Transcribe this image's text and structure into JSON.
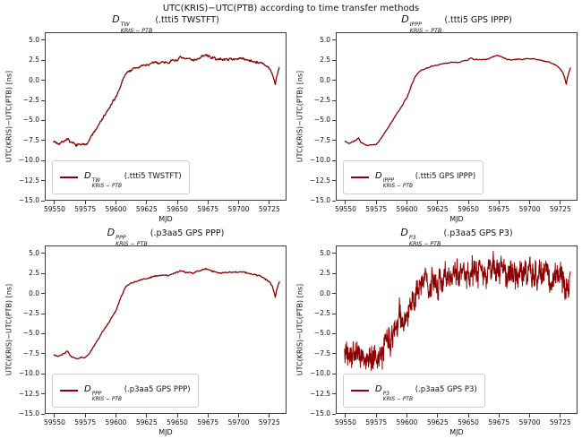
{
  "line_color": "#8B0000",
  "chart_data": {
    "type": "line",
    "title": "UTC(KRIS)−UTC(PTB) according to time transfer methods",
    "xlabel": "MJD",
    "ylabel": "UTC(KRIS)−UTC(PTB) [ns]",
    "symbol": "D",
    "xlim": [
      59542,
      59739
    ],
    "ylim": [
      -15,
      6
    ],
    "xticks": [
      59550,
      59575,
      59600,
      59625,
      59650,
      59675,
      59700,
      59725
    ],
    "yticks": [
      5.0,
      2.5,
      0.0,
      -2.5,
      -5.0,
      -7.5,
      -10.0,
      -12.5,
      -15.0
    ],
    "grid": false,
    "legend_position": "lower left",
    "data_mjd_range": [
      59548.5,
      59734
    ],
    "x_anchors": [
      59548.5,
      59552,
      59555,
      59558,
      59560,
      59562,
      59565,
      59568,
      59571,
      59574,
      59577,
      59580,
      59583,
      59586,
      59589,
      59592,
      59595,
      59598,
      59600,
      59602,
      59604,
      59606,
      59608,
      59611,
      59615,
      59620,
      59625,
      59630,
      59635,
      59639,
      59642,
      59646,
      59650,
      59652,
      59655,
      59658,
      59661,
      59664,
      59667,
      59670,
      59673,
      59676,
      59679,
      59682,
      59685,
      59688,
      59691,
      59694,
      59697,
      59700,
      59703,
      59706,
      59709,
      59712,
      59715,
      59718,
      59721,
      59724,
      59726,
      59728,
      59729.5,
      59730.5,
      59731.5,
      59733,
      59734
    ],
    "trend_ns": [
      -7.6,
      -7.9,
      -7.7,
      -7.5,
      -7.2,
      -7.8,
      -8.0,
      -8.15,
      -8.0,
      -8.1,
      -7.6,
      -6.9,
      -6.2,
      -5.5,
      -4.7,
      -4.0,
      -3.3,
      -2.5,
      -2.0,
      -1.2,
      -0.4,
      0.4,
      0.9,
      1.3,
      1.55,
      1.8,
      2.0,
      2.2,
      2.3,
      2.4,
      2.35,
      2.5,
      2.65,
      2.9,
      2.75,
      2.7,
      2.75,
      2.7,
      2.8,
      3.0,
      3.2,
      3.1,
      2.9,
      2.75,
      2.65,
      2.7,
      2.75,
      2.7,
      2.8,
      2.75,
      2.8,
      2.7,
      2.65,
      2.5,
      2.4,
      2.25,
      2.05,
      1.7,
      1.4,
      0.9,
      0.2,
      -0.4,
      0.4,
      1.2,
      1.7
    ],
    "series": [
      {
        "id": "twstft",
        "name": "D^TW_KRIS−PTB (.ttti5 TWSTFT)",
        "sup": "TW",
        "sub": "KRIS − PTB",
        "note": "(.ttti5 TWSTFT)",
        "noise_ns": 0.13,
        "seed": 7,
        "step_mjd": 0.4
      },
      {
        "id": "ippp",
        "name": "D^IPPP_KRIS−PTB (.ttti5 GPS IPPP)",
        "sup": "IPPP",
        "sub": "KRIS − PTB",
        "note": "(.ttti5 GPS IPPP)",
        "noise_ns": 0.05,
        "seed": 11,
        "step_mjd": 0.5
      },
      {
        "id": "ppp",
        "name": "D^PPP_KRIS−PTB (.p3aa5 GPS PPP)",
        "sup": "PPP",
        "sub": "KRIS − PTB",
        "note": "(.p3aa5 GPS PPP)",
        "noise_ns": 0.07,
        "seed": 23,
        "step_mjd": 0.5
      },
      {
        "id": "p3",
        "name": "D^P3_KRIS−PTB (.p3aa5 GPS P3)",
        "sup": "P3",
        "sub": "KRIS − PTB",
        "note": "(.p3aa5 GPS P3)",
        "noise_ns": 1.3,
        "seed": 5,
        "step_mjd": 0.18
      }
    ]
  }
}
